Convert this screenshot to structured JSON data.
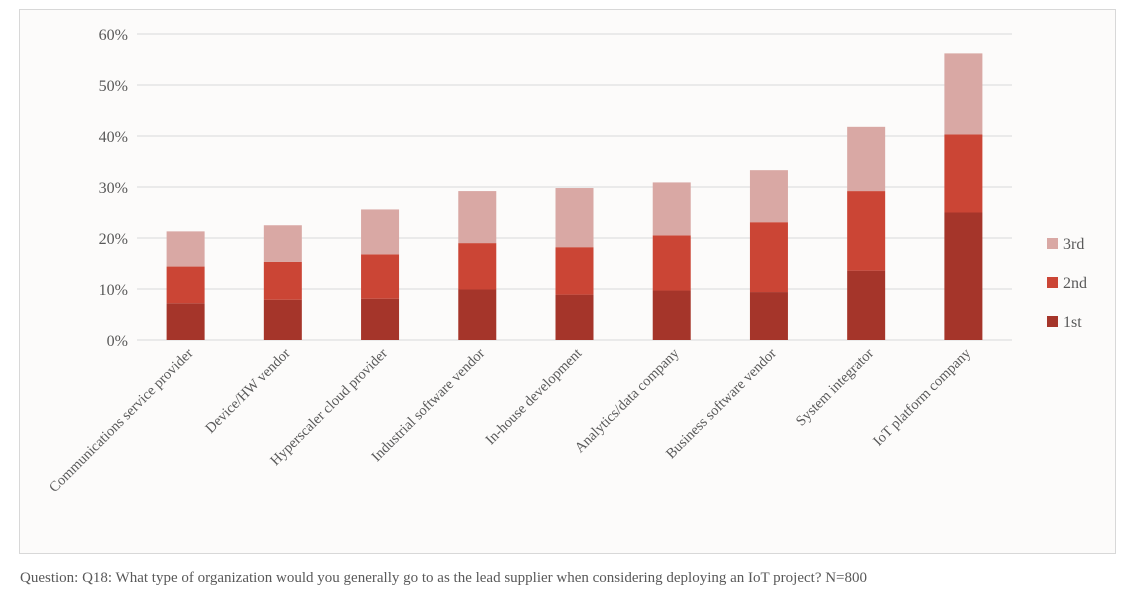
{
  "chart_data": {
    "type": "bar",
    "stacked": true,
    "categories": [
      "Communications service provider",
      "Device/HW vendor",
      "Hyperscaler cloud provider",
      "Industrial software vendor",
      "In-house development",
      "Analytics/data company",
      "Business software vendor",
      "System integrator",
      "IoT platform company"
    ],
    "series": [
      {
        "name": "1st",
        "color": "#a5352a",
        "values": [
          7.2,
          7.9,
          8.1,
          9.9,
          8.9,
          9.7,
          9.4,
          13.6,
          25.0
        ]
      },
      {
        "name": "2nd",
        "color": "#cb4535",
        "values": [
          7.2,
          7.4,
          8.7,
          9.1,
          9.3,
          10.8,
          13.7,
          15.6,
          15.3
        ]
      },
      {
        "name": "3rd",
        "color": "#d9a8a4",
        "values": [
          6.9,
          7.2,
          8.8,
          10.2,
          11.6,
          10.4,
          10.2,
          12.6,
          15.9
        ]
      }
    ],
    "ylim": [
      0,
      60
    ],
    "yticks": [
      0,
      10,
      20,
      30,
      40,
      50,
      60
    ],
    "yticklabels": [
      "0%",
      "10%",
      "20%",
      "30%",
      "40%",
      "50%",
      "60%"
    ],
    "grid": true,
    "legend_position": "right",
    "legend_order": [
      "3rd",
      "2nd",
      "1st"
    ]
  },
  "footnote": "Question: Q18: What type of organization would you generally go to as the lead supplier when considering deploying an IoT project? N=800"
}
